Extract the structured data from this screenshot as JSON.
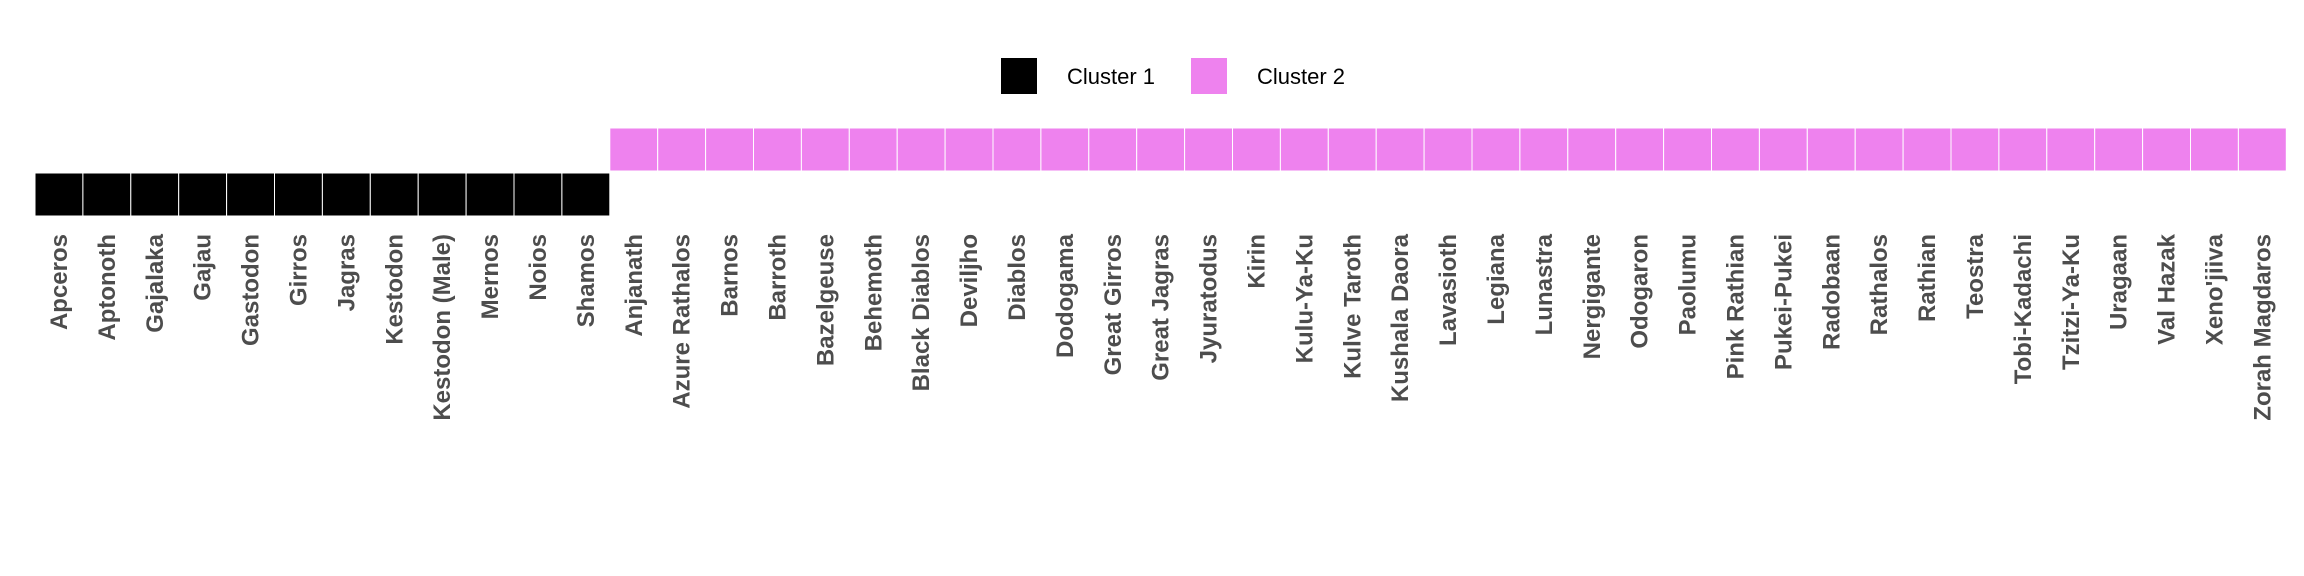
{
  "chart_data": {
    "type": "heatmap",
    "title": "",
    "xlabel": "",
    "ylabel": "",
    "legend_position": "top-center",
    "grid": false,
    "series": [
      {
        "name": "Cluster 1",
        "color": "#000000"
      },
      {
        "name": "Cluster 2",
        "color": "#ee82ee"
      }
    ],
    "categories": [
      "Apceros",
      "Aptonoth",
      "Gajalaka",
      "Gajau",
      "Gastodon",
      "Girros",
      "Jagras",
      "Kestodon",
      "Kestodon (Male)",
      "Mernos",
      "Noios",
      "Shamos",
      "Anjanath",
      "Azure Rathalos",
      "Barnos",
      "Barroth",
      "Bazelgeuse",
      "Behemoth",
      "Black Diablos",
      "Deviljho",
      "Diablos",
      "Dodogama",
      "Great Girros",
      "Great Jagras",
      "Jyuratodus",
      "Kirin",
      "Kulu-Ya-Ku",
      "Kulve Taroth",
      "Kushala Daora",
      "Lavasioth",
      "Legiana",
      "Lunastra",
      "Nergigante",
      "Odogaron",
      "Paolumu",
      "Pink Rathian",
      "Pukei-Pukei",
      "Radobaan",
      "Rathalos",
      "Rathian",
      "Teostra",
      "Tobi-Kadachi",
      "Tzitzi-Ya-Ku",
      "Uragaan",
      "Val Hazak",
      "Xeno'jiiva",
      "Zorah Magdaros"
    ],
    "values": [
      1,
      1,
      1,
      1,
      1,
      1,
      1,
      1,
      1,
      1,
      1,
      1,
      2,
      2,
      2,
      2,
      2,
      2,
      2,
      2,
      2,
      2,
      2,
      2,
      2,
      2,
      2,
      2,
      2,
      2,
      2,
      2,
      2,
      2,
      2,
      2,
      2,
      2,
      2,
      2,
      2,
      2,
      2,
      2,
      2,
      2,
      2
    ]
  }
}
